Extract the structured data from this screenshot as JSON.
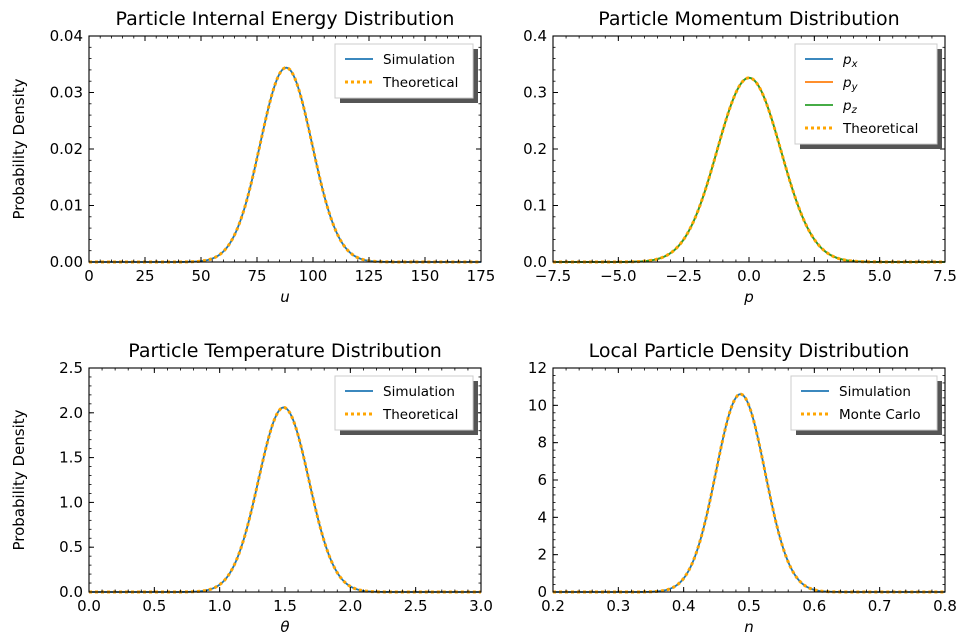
{
  "chart_data": [
    {
      "type": "line",
      "title": "Particle Internal Energy Distribution",
      "xlabel": "u",
      "ylabel": "Probability Density",
      "xlim": [
        0,
        175
      ],
      "ylim": [
        0,
        0.04
      ],
      "xticks": [
        0,
        25,
        50,
        75,
        100,
        125,
        150,
        175
      ],
      "xtick_labels": [
        "0",
        "25",
        "50",
        "75",
        "100",
        "125",
        "150",
        "175"
      ],
      "yticks": [
        0,
        0.01,
        0.02,
        0.03,
        0.04
      ],
      "ytick_labels": [
        "0.00",
        "0.01",
        "0.02",
        "0.03",
        "0.04"
      ],
      "legend_position": "top-right",
      "curve": {
        "mu": 88,
        "sigma": 11.6,
        "peak": 0.0344
      },
      "series": [
        {
          "name": "Simulation",
          "color": "#1f77b4",
          "style": "solid"
        },
        {
          "name": "Theoretical",
          "color": "#ffa500",
          "style": "dotted"
        }
      ]
    },
    {
      "type": "line",
      "title": "Particle Momentum Distribution",
      "xlabel": "p",
      "ylabel": "",
      "xlim": [
        -7.5,
        7.5
      ],
      "ylim": [
        0,
        0.4
      ],
      "xticks": [
        -7.5,
        -5,
        -2.5,
        0,
        2.5,
        5,
        7.5
      ],
      "xtick_labels": [
        "−7.5",
        "−5.0",
        "−2.5",
        "0.0",
        "2.5",
        "5.0",
        "7.5"
      ],
      "yticks": [
        0,
        0.1,
        0.2,
        0.3,
        0.4
      ],
      "ytick_labels": [
        "0.0",
        "0.1",
        "0.2",
        "0.3",
        "0.4"
      ],
      "legend_position": "top-right",
      "curve": {
        "mu": 0,
        "sigma": 1.22,
        "peak": 0.326
      },
      "series": [
        {
          "name": "p",
          "subscript": "x",
          "color": "#1f77b4",
          "style": "solid"
        },
        {
          "name": "p",
          "subscript": "y",
          "color": "#ff7f0e",
          "style": "solid"
        },
        {
          "name": "p",
          "subscript": "z",
          "color": "#2ca02c",
          "style": "solid"
        },
        {
          "name": "Theoretical",
          "color": "#ffa500",
          "style": "dotted"
        }
      ]
    },
    {
      "type": "line",
      "title": "Particle Temperature Distribution",
      "xlabel": "θ",
      "ylabel": "Probability Density",
      "xlim": [
        0,
        3
      ],
      "ylim": [
        0,
        2.5
      ],
      "xticks": [
        0,
        0.5,
        1,
        1.5,
        2,
        2.5,
        3
      ],
      "xtick_labels": [
        "0.0",
        "0.5",
        "1.0",
        "1.5",
        "2.0",
        "2.5",
        "3.0"
      ],
      "yticks": [
        0,
        0.5,
        1,
        1.5,
        2,
        2.5
      ],
      "ytick_labels": [
        "0.0",
        "0.5",
        "1.0",
        "1.5",
        "2.0",
        "2.5"
      ],
      "legend_position": "top-right",
      "curve": {
        "mu": 1.49,
        "sigma": 0.193,
        "peak": 2.06
      },
      "series": [
        {
          "name": "Simulation",
          "color": "#1f77b4",
          "style": "solid"
        },
        {
          "name": "Theoretical",
          "color": "#ffa500",
          "style": "dotted"
        }
      ]
    },
    {
      "type": "line",
      "title": "Local Particle Density Distribution",
      "xlabel": "n",
      "ylabel": "",
      "xlim": [
        0.2,
        0.8
      ],
      "ylim": [
        0,
        12
      ],
      "xticks": [
        0.2,
        0.3,
        0.4,
        0.5,
        0.6,
        0.7,
        0.8
      ],
      "xtick_labels": [
        "0.2",
        "0.3",
        "0.4",
        "0.5",
        "0.6",
        "0.7",
        "0.8"
      ],
      "yticks": [
        0,
        2,
        4,
        6,
        8,
        10,
        12
      ],
      "ytick_labels": [
        "0",
        "2",
        "4",
        "6",
        "8",
        "10",
        "12"
      ],
      "legend_position": "top-right",
      "curve": {
        "mu": 0.487,
        "sigma": 0.0376,
        "peak": 10.6
      },
      "series": [
        {
          "name": "Simulation",
          "color": "#1f77b4",
          "style": "solid"
        },
        {
          "name": "Monte Carlo",
          "color": "#ffa500",
          "style": "dotted"
        }
      ]
    }
  ]
}
